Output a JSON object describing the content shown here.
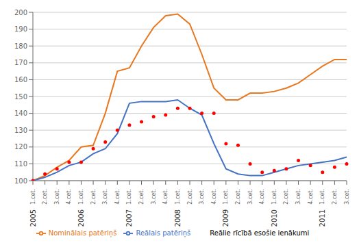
{
  "chart_data": {
    "type": "line",
    "categories": [
      "1.cet.",
      "2.cet.",
      "3.cet.",
      "4.cet.",
      "1.cet.",
      "2.cet.",
      "3.cet.",
      "4.cet.",
      "1.cet.",
      "2.cet.",
      "3.cet.",
      "4.cet.",
      "1.cet.",
      "2.cet.",
      "3.cet.",
      "4.cet.",
      "1.cet.",
      "2.cet.",
      "3.cet.",
      "4.cet.",
      "1.cet.",
      "2.cet.",
      "3.cet.",
      "4.cet.",
      "1.cet.",
      "2.cet.",
      "3.cet."
    ],
    "category_groups": [
      {
        "label": "2005",
        "start": 0
      },
      {
        "label": "2006",
        "start": 4
      },
      {
        "label": "2007",
        "start": 8
      },
      {
        "label": "2008",
        "start": 12
      },
      {
        "label": "2009",
        "start": 16
      },
      {
        "label": "2010",
        "start": 20
      },
      {
        "label": "2011",
        "start": 24
      }
    ],
    "series": [
      {
        "name": "Nominālais patēriņš",
        "type": "line",
        "color": "#E87820",
        "values": [
          100,
          103,
          108,
          112,
          120,
          121,
          140,
          165,
          167,
          180,
          191,
          198,
          199,
          193,
          175,
          155,
          148,
          148,
          152,
          152,
          153,
          155,
          158,
          163,
          168,
          172,
          172
        ]
      },
      {
        "name": "Reālais patēriņš",
        "type": "line",
        "color": "#4472C4",
        "values": [
          100,
          102,
          105,
          109,
          111,
          116,
          119,
          128,
          146,
          147,
          147,
          147,
          148,
          143,
          139,
          122,
          107,
          104,
          103,
          103,
          105,
          107,
          109,
          110,
          111,
          112,
          114
        ]
      },
      {
        "name": "Reālie rīcībā esošie ienākumi",
        "type": "scatter",
        "color": "#FF0000",
        "values": [
          100,
          104,
          107,
          111,
          111,
          119,
          123,
          130,
          133,
          135,
          138,
          139,
          143,
          143,
          140,
          140,
          122,
          121,
          110,
          105,
          106,
          107,
          112,
          109,
          105,
          108,
          110
        ]
      }
    ],
    "ylim": [
      100,
      200
    ],
    "yticks": [
      100,
      110,
      120,
      130,
      140,
      150,
      160,
      170,
      180,
      190,
      200
    ],
    "grid": true
  }
}
